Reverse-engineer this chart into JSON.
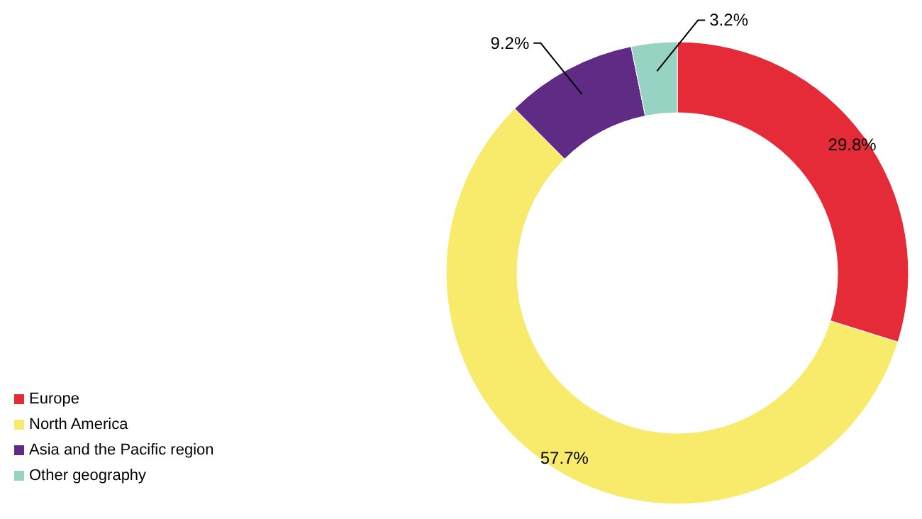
{
  "chart_data": {
    "type": "donut",
    "categories": [
      "Europe",
      "North America",
      "Asia and the Pacific region",
      "Other geography"
    ],
    "values": [
      29.8,
      57.7,
      9.2,
      3.2
    ],
    "value_labels": [
      "29.8%",
      "57.7%",
      "9.2%",
      "3.2%"
    ],
    "colors": [
      "#e52b38",
      "#f8eb6b",
      "#5f2b84",
      "#97d3c3"
    ],
    "legend": "bottom left"
  }
}
